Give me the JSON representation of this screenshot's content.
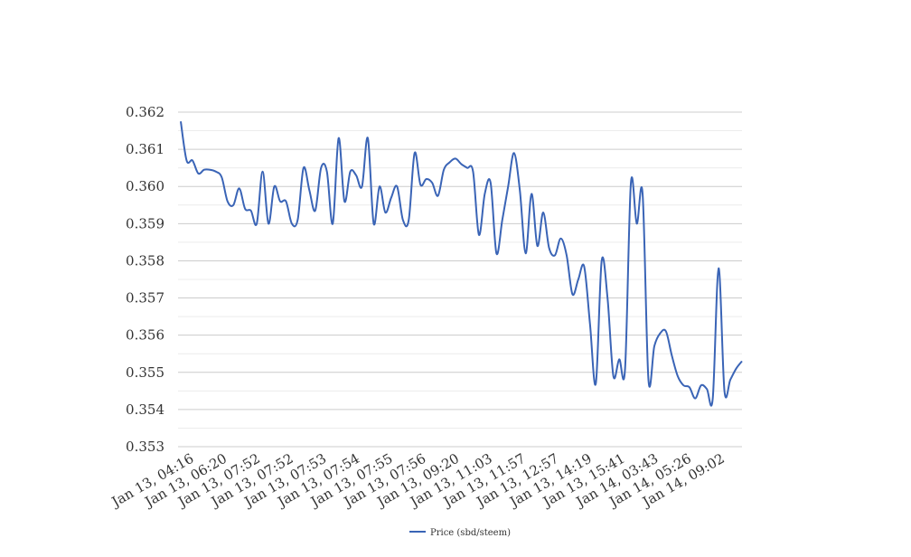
{
  "chart_data": {
    "type": "line",
    "title": "",
    "xlabel": "",
    "ylabel": "",
    "ylim": [
      0.353,
      0.362
    ],
    "y_ticks": [
      "0.353",
      "0.354",
      "0.355",
      "0.356",
      "0.357",
      "0.358",
      "0.359",
      "0.360",
      "0.361",
      "0.362"
    ],
    "x_tick_labels": [
      "Jan 13, 04:16",
      "Jan 13, 06:20",
      "Jan 13, 07:52",
      "Jan 13, 07:52",
      "Jan 13, 07:53",
      "Jan 13, 07:54",
      "Jan 13, 07:55",
      "Jan 13, 07:56",
      "Jan 13, 09:20",
      "Jan 13, 11:03",
      "Jan 13, 11:57",
      "Jan 13, 12:57",
      "Jan 13, 14:19",
      "Jan 13, 15:41",
      "Jan 14, 03:43",
      "Jan 14, 05:26",
      "Jan 14, 09:02"
    ],
    "grid": true,
    "legend_position": "bottom",
    "series": [
      {
        "name": "Price (sbd/steem)",
        "color": "#3a64b6",
        "values": [
          0.36175,
          0.3607,
          0.3607,
          0.36035,
          0.36045,
          0.36045,
          0.3604,
          0.36025,
          0.3596,
          0.3595,
          0.35995,
          0.3594,
          0.35935,
          0.359,
          0.3604,
          0.359,
          0.36,
          0.3596,
          0.3596,
          0.359,
          0.3591,
          0.3605,
          0.3599,
          0.35935,
          0.3605,
          0.3604,
          0.359,
          0.3613,
          0.3596,
          0.3604,
          0.3603,
          0.36,
          0.3613,
          0.359,
          0.36,
          0.3593,
          0.3597,
          0.36,
          0.3591,
          0.3591,
          0.3609,
          0.36005,
          0.3602,
          0.3601,
          0.35975,
          0.36045,
          0.36065,
          0.36075,
          0.3606,
          0.3605,
          0.3604,
          0.3587,
          0.3598,
          0.3601,
          0.3582,
          0.3591,
          0.36,
          0.3609,
          0.3599,
          0.3582,
          0.3598,
          0.3584,
          0.3593,
          0.35835,
          0.35815,
          0.3586,
          0.35815,
          0.3571,
          0.3575,
          0.35785,
          0.3563,
          0.3547,
          0.358,
          0.357,
          0.3549,
          0.35535,
          0.3551,
          0.3601,
          0.359,
          0.3598,
          0.3548,
          0.3557,
          0.35605,
          0.3561,
          0.35545,
          0.3549,
          0.35465,
          0.3546,
          0.3543,
          0.35465,
          0.35455,
          0.3543,
          0.3578,
          0.3545,
          0.3548,
          0.3551,
          0.3553
        ]
      }
    ]
  }
}
